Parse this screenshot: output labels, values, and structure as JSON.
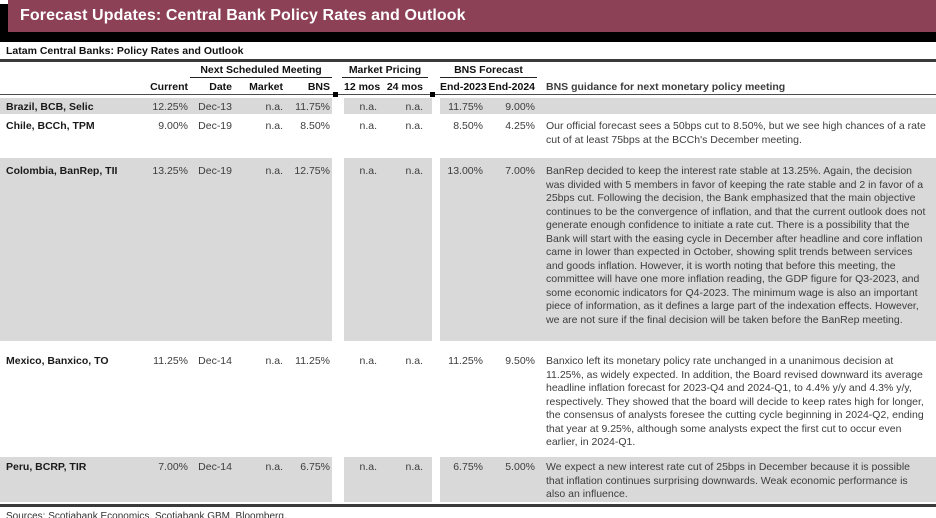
{
  "banner": {
    "title": "Forecast Updates: Central Bank Policy Rates and Outlook"
  },
  "colors": {
    "banner": "#8C4156",
    "banner_shadow": "#000000",
    "row_stripe": "#D9D9D9"
  },
  "table": {
    "title": "Latam Central Banks: Policy Rates and Outlook",
    "col_groups": [
      {
        "label": "Next Scheduled Meeting"
      },
      {
        "label": "Market Pricing"
      },
      {
        "label": "BNS Forecast"
      }
    ],
    "columns": {
      "current": "Current",
      "date": "Date",
      "market": "Market",
      "bns": "BNS",
      "m12": "12 mos",
      "m24": "24 mos",
      "end2023": "End-2023",
      "end2024": "End-2024",
      "guidance": "BNS guidance for next monetary policy meeting"
    },
    "rows": [
      {
        "name": "Brazil, BCB, Selic",
        "current": "12.25%",
        "date": "Dec-13",
        "market": "n.a.",
        "bns": "11.75%",
        "m12": "n.a.",
        "m24": "n.a.",
        "end2023": "11.75%",
        "end2024": "9.00%",
        "guidance": ""
      },
      {
        "name": "Chile, BCCh, TPM",
        "current": "9.00%",
        "date": "Dec-19",
        "market": "n.a.",
        "bns": "8.50%",
        "m12": "n.a.",
        "m24": "n.a.",
        "end2023": "8.50%",
        "end2024": "4.25%",
        "guidance": "Our official forecast sees a 50bps cut to 8.50%, but we see high chances of a rate cut of at least 75bps at the BCCh's December meeting."
      },
      {
        "name": "Colombia, BanRep, TII",
        "current": "13.25%",
        "date": "Dec-19",
        "market": "n.a.",
        "bns": "12.75%",
        "m12": "n.a.",
        "m24": "n.a.",
        "end2023": "13.00%",
        "end2024": "7.00%",
        "guidance": "BanRep decided to keep the interest rate stable at 13.25%. Again, the decision was divided with 5 members in favor of keeping the rate stable and 2 in favor of a 25bps cut. Following the decision, the Bank emphasized that the main objective continues to be the convergence of inflation, and that the current outlook does not generate enough confidence to initiate a rate cut. There is a possibility that the Bank will start with the easing cycle in December after headline and core inflation came in lower than expected in October, showing split trends between services and goods inflation. However, it is worth noting that before this meeting, the committee will have one more inflation reading, the GDP figure for Q3-2023, and some economic indicators for Q4-2023. The minimum wage is also an important piece of information, as it defines a large part of the indexation effects. However, we are not sure if the final decision will be taken before the BanRep meeting."
      },
      {
        "name": "Mexico, Banxico, TO",
        "current": "11.25%",
        "date": "Dec-14",
        "market": "n.a.",
        "bns": "11.25%",
        "m12": "n.a.",
        "m24": "n.a.",
        "end2023": "11.25%",
        "end2024": "9.50%",
        "guidance": "Banxico left its monetary policy rate unchanged in a unanimous decision at 11.25%, as widely expected. In addition, the Board revised downward its average headline inflation forecast for 2023-Q4 and 2024-Q1, to 4.4% y/y and 4.3% y/y, respectively. They showed that the board will decide to keep rates high for longer, the consensus of analysts foresee the cutting cycle beginning in 2024-Q2, ending that year at 9.25%, although some analysts expect the first cut to occur even earlier, in 2024-Q1."
      },
      {
        "name": "Peru, BCRP, TIR",
        "current": "7.00%",
        "date": "Dec-14",
        "market": "n.a.",
        "bns": "6.75%",
        "m12": "n.a.",
        "m24": "n.a.",
        "end2023": "6.75%",
        "end2024": "5.00%",
        "guidance": "We expect a new interest rate cut of 25bps in December because it is possible that inflation continues surprising downwards. Weak economic performance is also an influence."
      }
    ],
    "footer": "Sources: Scotiabank Economics, Scotiabank GBM, Bloomberg."
  }
}
